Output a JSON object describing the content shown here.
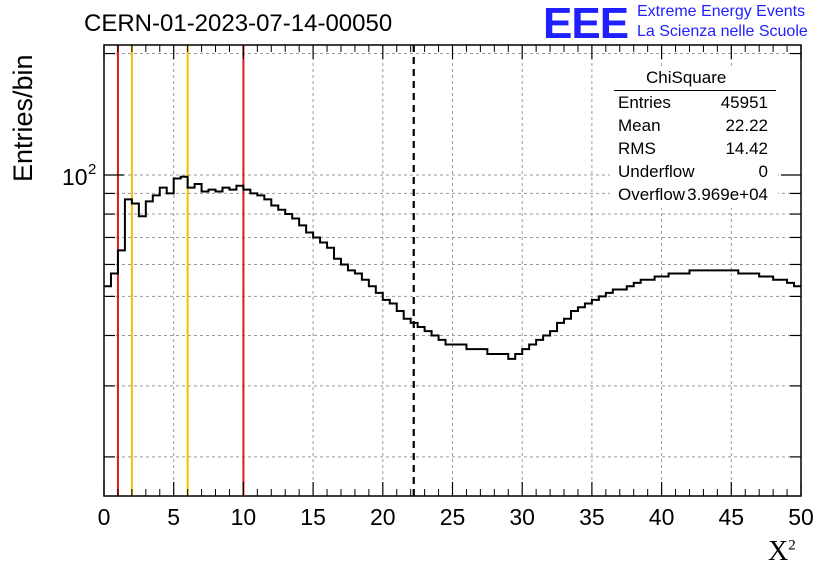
{
  "title": "CERN-01-2023-07-14-00050",
  "logo": {
    "mark": "EEE",
    "line1": "Extreme Energy Events",
    "line2": "La Scienza nelle Scuole",
    "color": "#1f1fff"
  },
  "stats": {
    "name": "ChiSquare",
    "rows": [
      {
        "label": "Entries",
        "value": "45951"
      },
      {
        "label": "Mean",
        "value": "22.22"
      },
      {
        "label": "RMS",
        "value": "14.42"
      },
      {
        "label": "Underflow",
        "value": "0"
      },
      {
        "label": "Overflow",
        "value": "3.969e+04"
      }
    ]
  },
  "chart_data": {
    "type": "histogram",
    "title": "CERN-01-2023-07-14-00050",
    "xlabel": "X",
    "xlabel_superscript": "2",
    "ylabel": "Entries/bin",
    "xlim": [
      0,
      50
    ],
    "ylim": [
      16,
      210
    ],
    "log_y": true,
    "grid": true,
    "bin_width": 0.5,
    "x_tick_labels": [
      "0",
      "5",
      "10",
      "15",
      "20",
      "25",
      "30",
      "35",
      "40",
      "45",
      "50"
    ],
    "y_tick_label": {
      "mantissa": "10",
      "exponent": "2",
      "value": 100
    },
    "values": [
      53,
      57,
      65,
      87,
      85,
      79,
      86,
      89,
      93,
      90,
      98,
      99,
      93,
      95,
      91,
      92,
      91,
      93,
      92,
      94,
      92,
      90,
      89,
      87,
      84,
      82,
      80,
      78,
      75,
      72,
      70,
      68,
      66,
      62,
      60,
      58,
      57,
      55,
      53,
      51,
      49,
      48,
      46,
      44,
      43,
      42,
      41,
      40,
      39,
      38,
      38,
      38,
      37,
      37,
      37,
      36,
      36,
      36,
      35,
      36,
      37,
      38,
      39,
      40,
      41,
      43,
      44,
      46,
      47,
      48,
      49,
      50,
      51,
      52,
      52,
      53,
      54,
      55,
      55,
      56,
      56,
      57,
      57,
      57,
      58,
      58,
      58,
      58,
      58,
      58,
      58,
      57,
      57,
      57,
      56,
      56,
      55,
      55,
      54,
      53
    ],
    "vertical_markers": [
      {
        "x": 1,
        "color": "#e01818",
        "style": "solid"
      },
      {
        "x": 2,
        "color": "#f0c000",
        "style": "solid"
      },
      {
        "x": 6,
        "color": "#f0c000",
        "style": "solid"
      },
      {
        "x": 10,
        "color": "#e01818",
        "style": "solid"
      },
      {
        "x": 22.22,
        "color": "#000000",
        "style": "dashed"
      }
    ],
    "line_color": "#000000",
    "grid_color": "#9a9a9a"
  }
}
